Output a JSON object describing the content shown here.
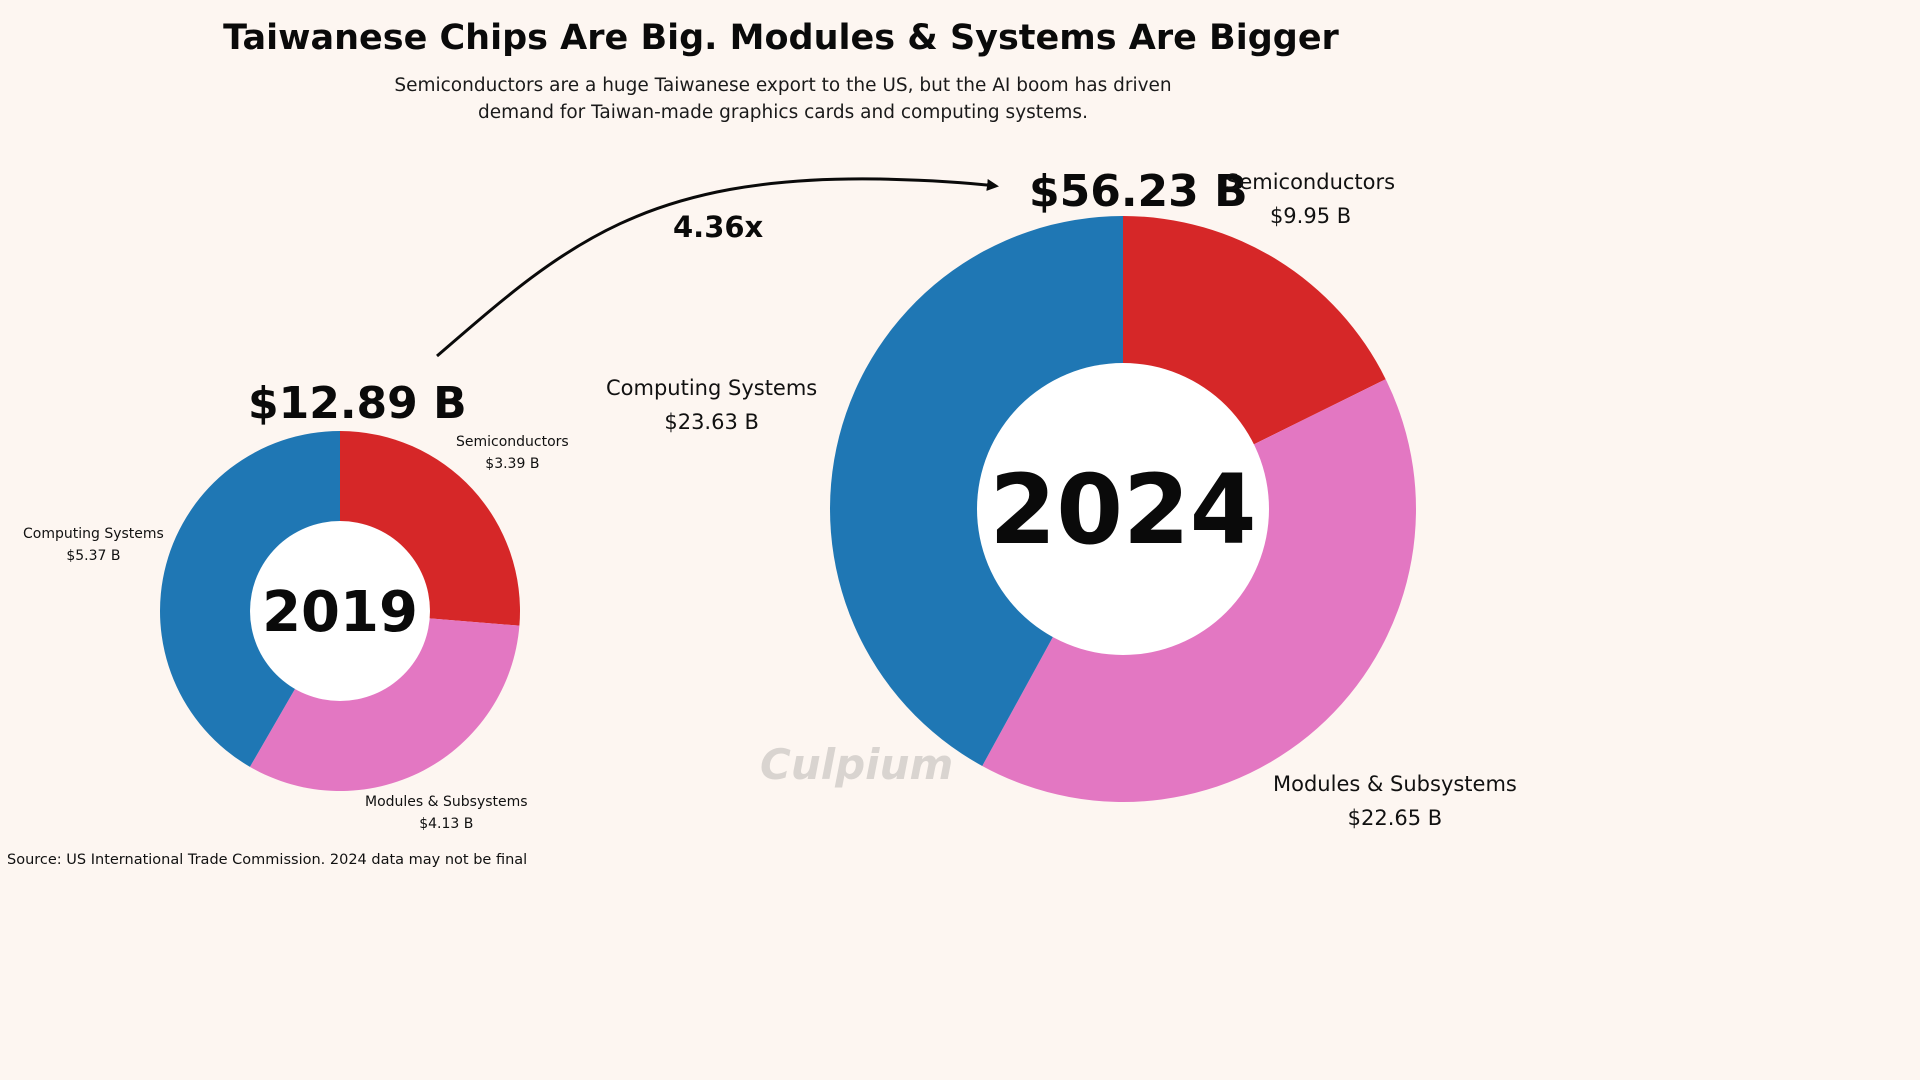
{
  "title": "Taiwanese Chips Are Big. Modules & Systems Are Bigger",
  "subtitle": "Semiconductors are a huge Taiwanese export to the US, but the AI boom has driven demand for Taiwan-made graphics cards and computing systems.",
  "multiplier": "4.36x",
  "source": "Source: US International Trade Commission.  2024 data may not be final",
  "watermark": "Culpium",
  "chart_data": [
    {
      "type": "pie",
      "year": "2019",
      "total_label": "$12.89 B",
      "total": 12.89,
      "slices": [
        {
          "name": "Semiconductors",
          "value": 3.39,
          "value_label": "$3.39 B",
          "color": "#d62728"
        },
        {
          "name": "Modules & Subsystems",
          "value": 4.13,
          "value_label": "$4.13 B",
          "color": "#e377c2"
        },
        {
          "name": "Computing Systems",
          "value": 5.37,
          "value_label": "$5.37 B",
          "color": "#1f77b4"
        }
      ]
    },
    {
      "type": "pie",
      "year": "2024",
      "total_label": "$56.23 B",
      "total": 56.23,
      "slices": [
        {
          "name": "Semiconductors",
          "value": 9.95,
          "value_label": "$9.95 B",
          "color": "#d62728"
        },
        {
          "name": "Modules & Subsystems",
          "value": 22.65,
          "value_label": "$22.65 B",
          "color": "#e377c2"
        },
        {
          "name": "Computing Systems",
          "value": 23.63,
          "value_label": "$23.63 B",
          "color": "#1f77b4"
        }
      ]
    }
  ]
}
